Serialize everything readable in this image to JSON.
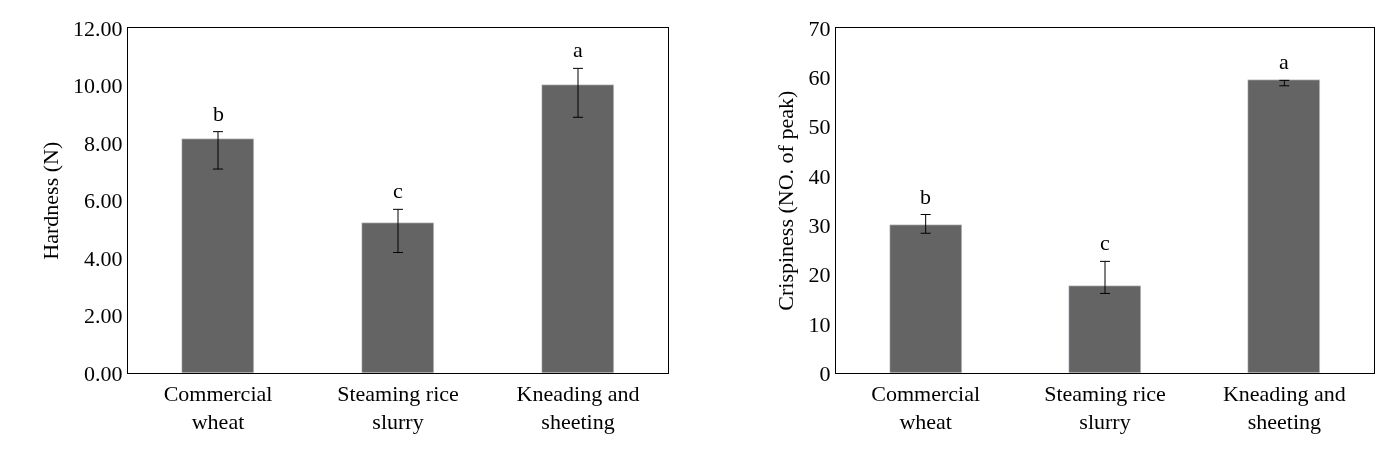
{
  "chart_data": [
    {
      "type": "bar",
      "ylabel": "Hardness (N)",
      "categories": [
        "Commercial wheat",
        "Steaming rice slurry",
        "Kneading and sheeting"
      ],
      "series": [
        {
          "color": "#646464",
          "values": [
            8.15,
            5.21,
            10.01
          ],
          "errors": [
            [
              7.1,
              8.4
            ],
            [
              4.2,
              5.7
            ],
            [
              8.9,
              10.6
            ]
          ]
        }
      ],
      "ylim": [
        0,
        12
      ],
      "yticks": [
        {
          "value": 0,
          "label": "0.00"
        },
        {
          "value": 2,
          "label": "2.00"
        },
        {
          "value": 4,
          "label": "4.00"
        },
        {
          "value": 6,
          "label": "6.00"
        },
        {
          "value": 8,
          "label": "8.00"
        },
        {
          "value": 10,
          "label": "10.00"
        },
        {
          "value": 12,
          "label": "12.00"
        }
      ],
      "annotations": [
        "b",
        "c",
        "a"
      ]
    },
    {
      "type": "bar",
      "ylabel": "Crispiness (NO. of peak)",
      "categories": [
        "Commercial wheat",
        "Steaming rice slurry",
        "Kneading and sheeting"
      ],
      "series": [
        {
          "color": "#646464",
          "values": [
            30.0,
            17.7,
            59.4
          ],
          "errors": [
            [
              28.4,
              32.2
            ],
            [
              16.2,
              22.7
            ],
            [
              58.3,
              59.4
            ]
          ]
        }
      ],
      "ylim": [
        0,
        70
      ],
      "yticks": [
        0,
        10,
        20,
        30,
        40,
        50,
        60,
        70
      ],
      "annotations": [
        "b",
        "c",
        "a"
      ]
    }
  ]
}
